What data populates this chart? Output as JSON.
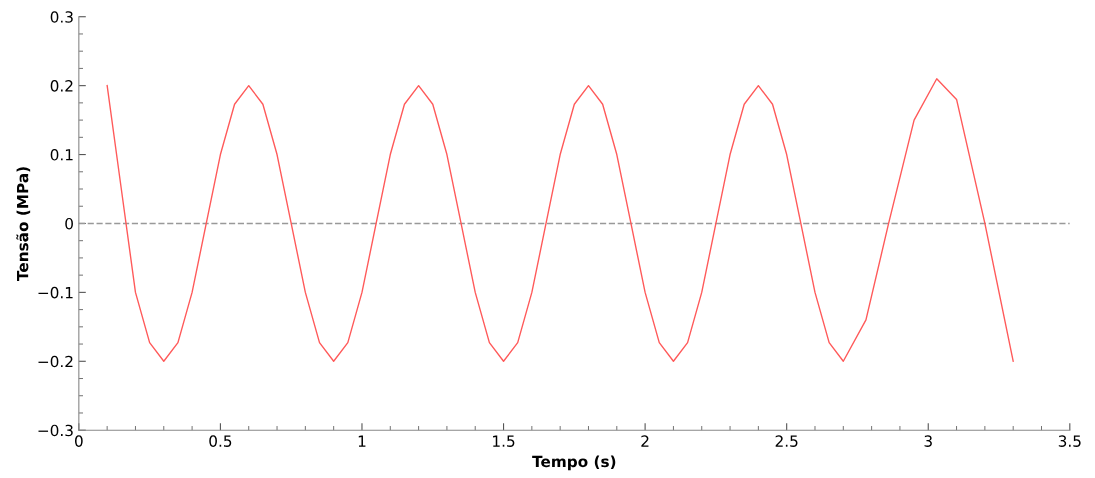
{
  "chart_data": {
    "type": "line",
    "xlabel": "Tempo (s)",
    "ylabel": "Tensão (MPa)",
    "x": [
      0.1,
      0.15,
      0.2,
      0.25,
      0.3,
      0.35,
      0.4,
      0.45,
      0.5,
      0.55,
      0.6,
      0.65,
      0.7,
      0.75,
      0.8,
      0.85,
      0.9,
      0.95,
      1.0,
      1.05,
      1.1,
      1.15,
      1.2,
      1.25,
      1.3,
      1.35,
      1.4,
      1.45,
      1.5,
      1.55,
      1.6,
      1.65,
      1.7,
      1.75,
      1.8,
      1.85,
      1.9,
      1.95,
      2.0,
      2.05,
      2.1,
      2.15,
      2.2,
      2.25,
      2.3,
      2.35,
      2.4,
      2.45,
      2.5,
      2.55,
      2.6,
      2.65,
      2.7,
      2.78,
      2.86,
      2.95,
      3.03,
      3.1,
      3.2,
      3.3
    ],
    "series": [
      {
        "color": "#ff5a5a",
        "values": [
          0.2,
          0.05,
          -0.1,
          -0.173,
          -0.2,
          -0.173,
          -0.1,
          0,
          0.1,
          0.173,
          0.2,
          0.173,
          0.1,
          0,
          -0.1,
          -0.173,
          -0.2,
          -0.173,
          -0.1,
          0,
          0.1,
          0.173,
          0.2,
          0.173,
          0.1,
          0,
          -0.1,
          -0.173,
          -0.2,
          -0.173,
          -0.1,
          0,
          0.1,
          0.173,
          0.2,
          0.173,
          0.1,
          0,
          -0.1,
          -0.173,
          -0.2,
          -0.173,
          -0.1,
          0,
          0.1,
          0.173,
          0.2,
          0.173,
          0.1,
          0,
          -0.1,
          -0.173,
          -0.2,
          -0.14,
          0,
          0.15,
          0.21,
          0.18,
          0,
          -0.2
        ]
      }
    ],
    "xlim": [
      0,
      3.5
    ],
    "xticks": [
      0,
      0.5,
      1,
      1.5,
      2,
      2.5,
      3,
      3.5
    ],
    "ylim": [
      -0.3,
      0.3
    ],
    "yticks": [
      {
        "value": -0.3,
        "label": "−0.3"
      },
      {
        "value": -0.2,
        "label": "−0.2"
      },
      {
        "value": -0.1,
        "label": "−0.1"
      },
      0,
      0.1,
      0.2,
      0.3
    ],
    "ref_lines": [
      {
        "axis": "y",
        "value": 0,
        "color": "#999999",
        "line_style": "dashed"
      }
    ],
    "grid": false,
    "legend": false,
    "marker": "none",
    "line_style": "solid"
  }
}
